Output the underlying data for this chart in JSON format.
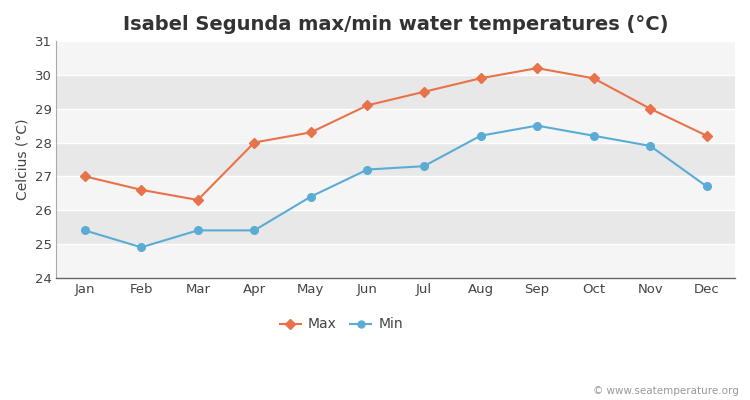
{
  "title": "Isabel Segunda max/min water temperatures (°C)",
  "ylabel": "Celcius (°C)",
  "months": [
    "Jan",
    "Feb",
    "Mar",
    "Apr",
    "May",
    "Jun",
    "Jul",
    "Aug",
    "Sep",
    "Oct",
    "Nov",
    "Dec"
  ],
  "max_temps": [
    27.0,
    26.6,
    26.3,
    28.0,
    28.3,
    29.1,
    29.5,
    29.9,
    30.2,
    29.9,
    29.0,
    28.2
  ],
  "min_temps": [
    25.4,
    24.9,
    25.4,
    25.4,
    26.4,
    27.2,
    27.3,
    28.2,
    28.5,
    28.2,
    27.9,
    26.7
  ],
  "max_color": "#e8724a",
  "min_color": "#5bacd4",
  "bg_color": "#ffffff",
  "plot_bg_color": "#ffffff",
  "band_color_dark": "#e8e8e8",
  "band_color_light": "#f5f5f5",
  "grid_color": "#d8d8d8",
  "ylim": [
    24,
    31
  ],
  "yticks": [
    25,
    26,
    27,
    28,
    29,
    30,
    31
  ],
  "yticks_with_24": [
    24,
    25,
    26,
    27,
    28,
    29,
    30,
    31
  ],
  "watermark": "© www.seatemperature.org",
  "title_fontsize": 14,
  "label_fontsize": 10,
  "tick_fontsize": 9.5,
  "watermark_fontsize": 7.5,
  "legend_labels": [
    "Max",
    "Min"
  ]
}
